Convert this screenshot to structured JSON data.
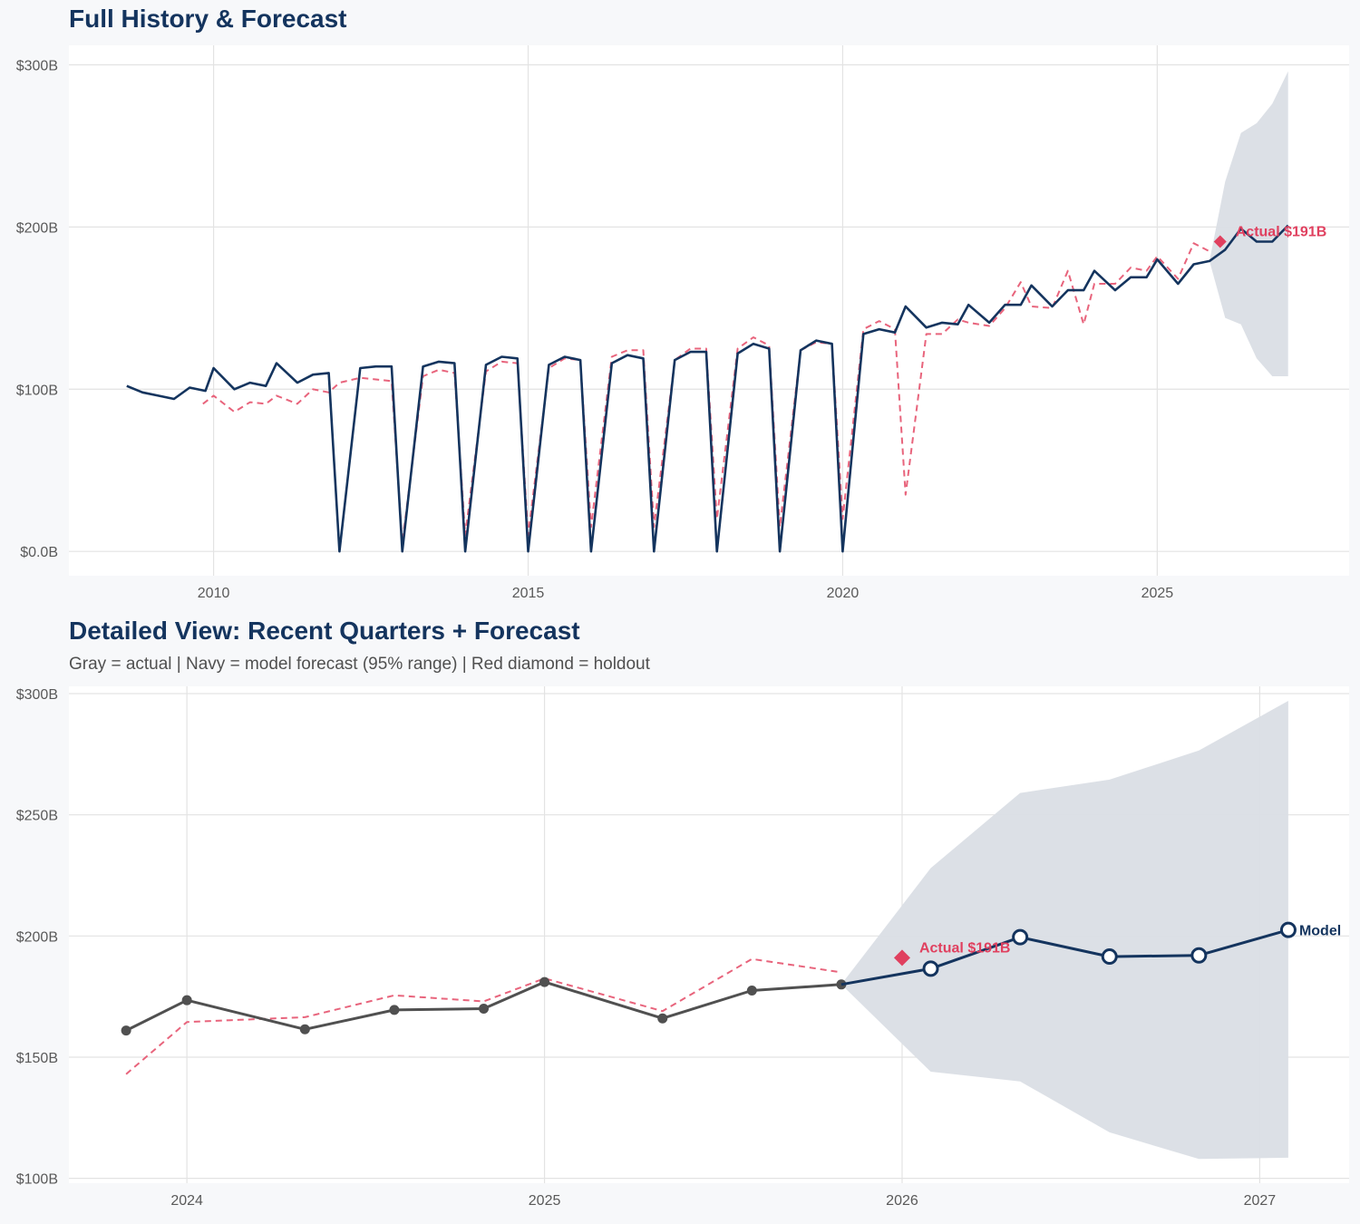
{
  "chart_data": [
    {
      "id": "full-history",
      "type": "line",
      "title": "Full History & Forecast",
      "xlabel": "",
      "ylabel": "",
      "xlim": [
        2007.7,
        2028.05
      ],
      "ylim": [
        -15,
        312
      ],
      "x_ticks": [
        2010,
        2015,
        2020,
        2025
      ],
      "x_tick_labels": [
        "2010",
        "2015",
        "2020",
        "2025"
      ],
      "y_ticks": [
        0,
        100,
        200,
        300
      ],
      "y_tick_labels": [
        "$0.0B",
        "$100B",
        "$200B",
        "$300B"
      ],
      "grid": true,
      "colors": {
        "actual": "#14345e",
        "fitted": "#e8647c",
        "band": "#dadee5",
        "holdout": "#e0405f"
      },
      "series": [
        {
          "name": "Actual",
          "style": "solid",
          "x": [
            2008.62,
            2008.87,
            2009.12,
            2009.37,
            2009.62,
            2009.87,
            2010.0,
            2010.33,
            2010.58,
            2010.83,
            2011.0,
            2011.33,
            2011.58,
            2011.83,
            2012.0,
            2012.33,
            2012.58,
            2012.83,
            2013.0,
            2013.33,
            2013.58,
            2013.83,
            2014.0,
            2014.33,
            2014.58,
            2014.83,
            2015.0,
            2015.33,
            2015.58,
            2015.83,
            2016.0,
            2016.33,
            2016.58,
            2016.83,
            2017.0,
            2017.33,
            2017.58,
            2017.83,
            2018.0,
            2018.33,
            2018.58,
            2018.83,
            2019.0,
            2019.33,
            2019.58,
            2019.83,
            2020.0,
            2020.33,
            2020.58,
            2020.83,
            2021.0,
            2021.33,
            2021.58,
            2021.83,
            2022.0,
            2022.33,
            2022.58,
            2022.83,
            2023.0,
            2023.33,
            2023.58,
            2023.83,
            2024.0,
            2024.33,
            2024.58,
            2024.83,
            2025.0,
            2025.33,
            2025.58,
            2025.83,
            2026.08,
            2026.33,
            2026.58,
            2026.83,
            2027.08
          ],
          "y": [
            102,
            98,
            96,
            94,
            101,
            99,
            113,
            100,
            104,
            102,
            116,
            104,
            109,
            110,
            0,
            113,
            114,
            114,
            0,
            114,
            117,
            116,
            0,
            115,
            120,
            119,
            0,
            115,
            120,
            118,
            0,
            116,
            121,
            119,
            0,
            118,
            123,
            123,
            0,
            122,
            128,
            125,
            0,
            124,
            130,
            128,
            0,
            134,
            137,
            135,
            151,
            138,
            141,
            140,
            152,
            141,
            152,
            152,
            164,
            151,
            161,
            161,
            173,
            161,
            169,
            169,
            180,
            165,
            177,
            179,
            186,
            199,
            191,
            191,
            201
          ]
        },
        {
          "name": "Fitted",
          "style": "dashed",
          "x": [
            2009.83,
            2010.0,
            2010.33,
            2010.58,
            2010.83,
            2011.0,
            2011.33,
            2011.58,
            2011.83,
            2012.0,
            2012.33,
            2012.58,
            2012.83,
            2013.0,
            2013.33,
            2013.58,
            2013.83,
            2014.0,
            2014.33,
            2014.58,
            2014.83,
            2015.0,
            2015.33,
            2015.58,
            2015.83,
            2016.0,
            2016.33,
            2016.58,
            2016.83,
            2017.0,
            2017.33,
            2017.58,
            2017.83,
            2018.0,
            2018.33,
            2018.58,
            2018.83,
            2019.0,
            2019.33,
            2019.58,
            2019.83,
            2020.0,
            2020.33,
            2020.58,
            2020.83,
            2021.0,
            2021.33,
            2021.58,
            2021.83,
            2022.0,
            2022.33,
            2022.58,
            2022.83,
            2023.0,
            2023.33,
            2023.58,
            2023.83,
            2024.0,
            2024.33,
            2024.58,
            2024.83,
            2025.0,
            2025.33,
            2025.58,
            2025.83
          ],
          "y": [
            91,
            96,
            86,
            92,
            91,
            96,
            91,
            100,
            98,
            104,
            107,
            106,
            105,
            5,
            108,
            112,
            110,
            10,
            111,
            117,
            116,
            10,
            113,
            119,
            118,
            15,
            120,
            124,
            124,
            15,
            118,
            125,
            125,
            20,
            125,
            132,
            127,
            15,
            124,
            129,
            128,
            20,
            137,
            142,
            137,
            35,
            134,
            134,
            143,
            141,
            139,
            150,
            166,
            151,
            150,
            173,
            140,
            165,
            165,
            175,
            173,
            182,
            168,
            190,
            185
          ]
        }
      ],
      "forecast_band": {
        "x": [
          2025.83,
          2026.08,
          2026.33,
          2026.58,
          2026.83,
          2027.08
        ],
        "lower": [
          179,
          144,
          140,
          119,
          108,
          108
        ],
        "upper": [
          179,
          228,
          258,
          264,
          276,
          296
        ]
      },
      "holdout": {
        "x": 2026.0,
        "y": 191,
        "label": "Actual $191B"
      }
    },
    {
      "id": "detailed-view",
      "type": "line",
      "title": "Detailed View: Recent Quarters + Forecast",
      "subtitle": "Gray = actual  |  Navy = model forecast (95% range)  |  Red diamond = holdout",
      "xlabel": "",
      "ylabel": "",
      "xlim": [
        2023.67,
        2027.25
      ],
      "ylim": [
        98,
        303
      ],
      "x_ticks": [
        2024,
        2025,
        2026,
        2027
      ],
      "x_tick_labels": [
        "2024",
        "2025",
        "2026",
        "2027"
      ],
      "y_ticks": [
        100,
        150,
        200,
        250,
        300
      ],
      "y_tick_labels": [
        "$100B",
        "$150B",
        "$200B",
        "$250B",
        "$300B"
      ],
      "grid": true,
      "colors": {
        "actual": "#505050",
        "forecast": "#14345e",
        "fitted": "#e8647c",
        "band": "#dadee5",
        "holdout": "#e0405f"
      },
      "series": [
        {
          "name": "Actual",
          "style": "solid-markers",
          "x": [
            2023.83,
            2024.0,
            2024.33,
            2024.58,
            2024.83,
            2025.0,
            2025.33,
            2025.58,
            2025.83
          ],
          "y": [
            161,
            173.5,
            161.5,
            169.5,
            170,
            181,
            166,
            177.5,
            180
          ]
        },
        {
          "name": "Model",
          "style": "solid-open-markers",
          "x": [
            2025.83,
            2026.08,
            2026.33,
            2026.58,
            2026.83,
            2027.08
          ],
          "y": [
            180,
            186.5,
            199.5,
            191.5,
            192,
            202.5
          ],
          "end_label": "Model"
        },
        {
          "name": "Fitted",
          "style": "dashed",
          "x": [
            2023.83,
            2024.0,
            2024.33,
            2024.58,
            2024.83,
            2025.0,
            2025.33,
            2025.58,
            2025.83
          ],
          "y": [
            143,
            164.5,
            166.5,
            175.5,
            173,
            182.5,
            169,
            190.5,
            185
          ]
        }
      ],
      "forecast_band": {
        "x": [
          2025.83,
          2026.08,
          2026.33,
          2026.58,
          2026.83,
          2027.08
        ],
        "lower": [
          180,
          144,
          140,
          119,
          108,
          108.5
        ],
        "upper": [
          180,
          228,
          259,
          264.5,
          276.5,
          297
        ]
      },
      "holdout": {
        "x": 2026.0,
        "y": 191,
        "label": "Actual $191B"
      }
    }
  ]
}
